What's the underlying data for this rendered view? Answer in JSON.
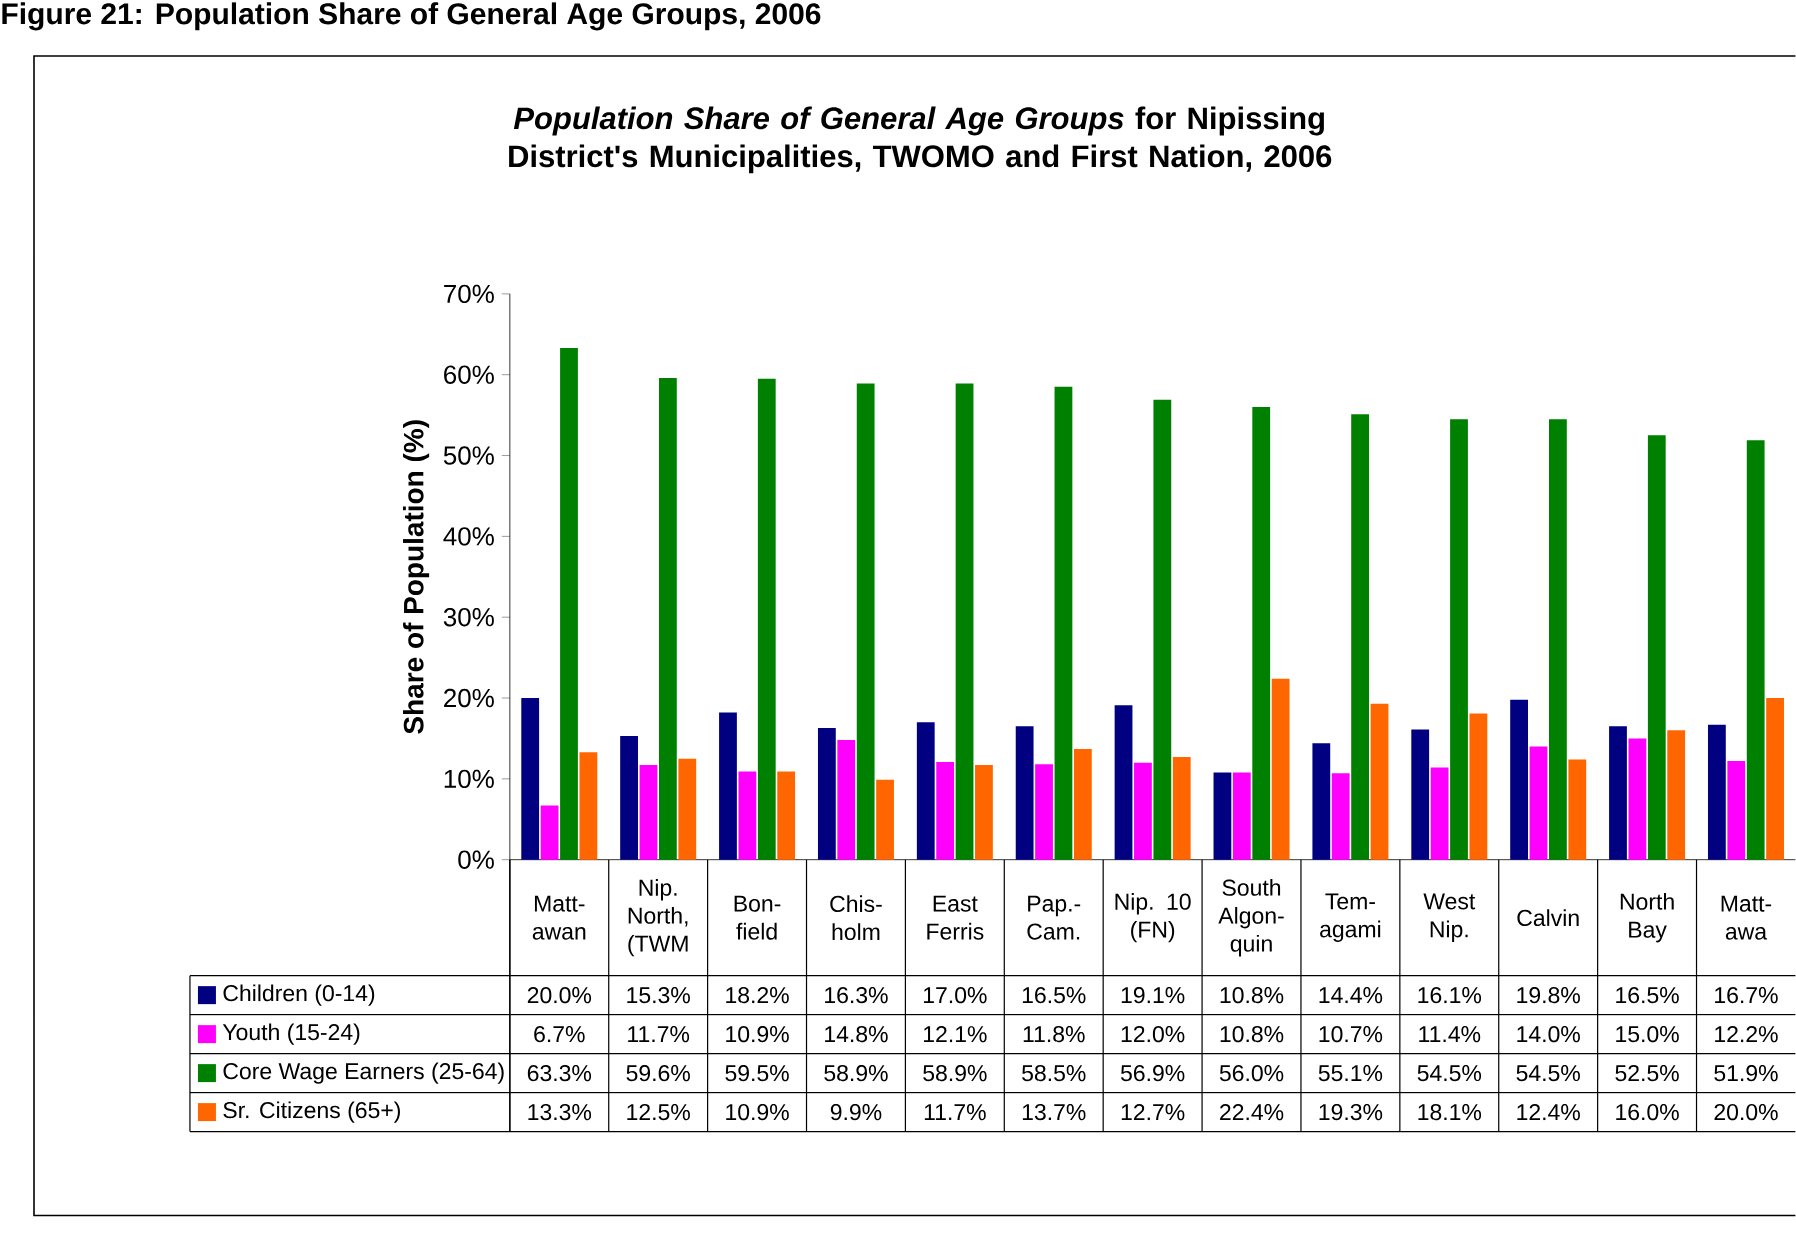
{
  "chart_data": {
    "type": "bar",
    "title": "*Population Share of General Age Groups* for Nipissing District's Municipalities, TWOMO and First Nation, 2006",
    "ylabel": "Share of Population (%)",
    "annotations": [
      "Figure 21: Population Share of General Age Groups, 2006"
    ],
    "categories": [
      "Matt- awan",
      "Nip. North, (TWM",
      "Bon- field",
      "Chis- holm",
      "East Ferris",
      "Pap.- Cam.",
      "Nip. 10 (FN)",
      "South Algon- quin",
      "Tem- agami",
      "West Nip.",
      "Calvin",
      "North Bay",
      "Matt- awa"
    ],
    "series": [
      {
        "name": "Children (0-14)",
        "color": "#000080",
        "values": [
          20.0,
          15.3,
          18.2,
          16.3,
          17.0,
          16.5,
          19.1,
          10.8,
          14.4,
          16.1,
          19.8,
          16.5,
          16.7
        ],
        "value_labels": [
          "20.0%",
          "15.3%",
          "18.2%",
          "16.3%",
          "17.0%",
          "16.5%",
          "19.1%",
          "10.8%",
          "14.4%",
          "16.1%",
          "19.8%",
          "16.5%",
          "16.7%"
        ]
      },
      {
        "name": "Youth (15-24)",
        "color": "#ff00ff",
        "values": [
          6.7,
          11.7,
          10.9,
          14.8,
          12.1,
          11.8,
          12.0,
          10.8,
          10.7,
          11.4,
          14.0,
          15.0,
          12.2
        ],
        "value_labels": [
          "6.7%",
          "11.7%",
          "10.9%",
          "14.8%",
          "12.1%",
          "11.8%",
          "12.0%",
          "10.8%",
          "10.7%",
          "11.4%",
          "14.0%",
          "15.0%",
          "12.2%"
        ]
      },
      {
        "name": "Core Wage Earners (25-64)",
        "color": "#008000",
        "values": [
          63.3,
          59.6,
          59.5,
          58.9,
          58.9,
          58.5,
          56.9,
          56.0,
          55.1,
          54.5,
          54.5,
          52.5,
          51.9
        ],
        "value_labels": [
          "63.3%",
          "59.6%",
          "59.5%",
          "58.9%",
          "58.9%",
          "58.5%",
          "56.9%",
          "56.0%",
          "55.1%",
          "54.5%",
          "54.5%",
          "52.5%",
          "51.9%"
        ]
      },
      {
        "name": "Sr. Citizens (65+)",
        "color": "#ff6600",
        "values": [
          13.3,
          12.5,
          10.9,
          9.9,
          11.7,
          13.7,
          12.7,
          22.4,
          19.3,
          18.1,
          12.4,
          16.0,
          20.0
        ],
        "value_labels": [
          "13.3%",
          "12.5%",
          "10.9%",
          "9.9%",
          "11.7%",
          "13.7%",
          "12.7%",
          "22.4%",
          "19.3%",
          "18.1%",
          "12.4%",
          "16.0%",
          "20.0%"
        ]
      }
    ],
    "ylim": [
      0,
      70
    ],
    "yticks": [
      {
        "value": 0,
        "label": "0%"
      },
      {
        "value": 10,
        "label": "10%"
      },
      {
        "value": 20,
        "label": "20%"
      },
      {
        "value": 30,
        "label": "30%"
      },
      {
        "value": 40,
        "label": "40%"
      },
      {
        "value": 50,
        "label": "50%"
      },
      {
        "value": 60,
        "label": "60%"
      },
      {
        "value": 70,
        "label": "70%"
      }
    ],
    "legend": "bottom"
  }
}
